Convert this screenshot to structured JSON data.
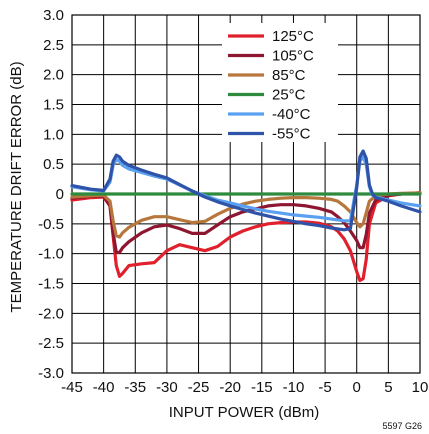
{
  "chart_data": {
    "type": "line",
    "title": "",
    "xlabel": "INPUT POWER (dBm)",
    "ylabel": "TEMPERATURE DRIFT ERROR (dB)",
    "xlim": [
      -45,
      10
    ],
    "ylim": [
      -3.0,
      3.0
    ],
    "x_ticks": [
      -45,
      -40,
      -35,
      -30,
      -25,
      -20,
      -15,
      -10,
      -5,
      0,
      5,
      10
    ],
    "x_tick_labels": [
      "-45",
      "-40",
      "-35",
      "-30",
      "-25",
      "-20",
      "-15",
      "-10",
      "-5",
      "0",
      "5",
      "10"
    ],
    "y_ticks": [
      -3.0,
      -2.5,
      -2.0,
      -1.5,
      -1.0,
      -0.5,
      0,
      0.5,
      1.0,
      1.5,
      2.0,
      2.5,
      3.0
    ],
    "y_tick_labels": [
      "-3.0",
      "-2.5",
      "-2.0",
      "-1.5",
      "-1.0",
      "-0.5",
      "0",
      "0.5",
      "1.0",
      "1.5",
      "2.0",
      "2.5",
      "3.0"
    ],
    "grid": true,
    "legend_position": "top-center",
    "figure_id": "5597 G26",
    "series": [
      {
        "name": "125°C",
        "color": "#e0202c",
        "x": [
          -45,
          -42,
          -40,
          -39,
          -38.5,
          -38,
          -37.5,
          -37,
          -36,
          -34,
          -32,
          -30,
          -28,
          -26,
          -24,
          -22,
          -20,
          -18,
          -16,
          -14,
          -12,
          -10,
          -8,
          -6,
          -4,
          -3,
          -2,
          -1,
          0,
          0.5,
          1,
          1.5,
          2,
          3,
          5,
          7,
          10
        ],
        "y": [
          -0.1,
          -0.06,
          -0.05,
          -0.2,
          -0.7,
          -1.2,
          -1.38,
          -1.33,
          -1.2,
          -1.17,
          -1.15,
          -0.95,
          -0.85,
          -0.9,
          -0.95,
          -0.88,
          -0.72,
          -0.62,
          -0.55,
          -0.5,
          -0.48,
          -0.47,
          -0.47,
          -0.49,
          -0.55,
          -0.62,
          -0.75,
          -0.95,
          -1.3,
          -1.45,
          -1.42,
          -1.1,
          -0.5,
          -0.15,
          -0.03,
          0.0,
          0.02
        ]
      },
      {
        "name": "105°C",
        "color": "#8e1630",
        "x": [
          -45,
          -42,
          -40,
          -39,
          -38.5,
          -38,
          -37.5,
          -37,
          -36,
          -34,
          -32,
          -30,
          -28,
          -26,
          -24,
          -22,
          -20,
          -18,
          -16,
          -14,
          -12,
          -10,
          -8,
          -6,
          -4,
          -3,
          -2,
          -1,
          0,
          0.5,
          1,
          1.5,
          2,
          3,
          5,
          7,
          10
        ],
        "y": [
          -0.07,
          -0.04,
          -0.03,
          -0.2,
          -0.65,
          -0.98,
          -0.98,
          -0.9,
          -0.8,
          -0.65,
          -0.55,
          -0.52,
          -0.58,
          -0.66,
          -0.66,
          -0.52,
          -0.38,
          -0.3,
          -0.25,
          -0.2,
          -0.18,
          -0.18,
          -0.2,
          -0.24,
          -0.3,
          -0.38,
          -0.48,
          -0.62,
          -0.78,
          -0.9,
          -0.9,
          -0.68,
          -0.32,
          -0.1,
          -0.02,
          0.0,
          0.02
        ]
      },
      {
        "name": "85°C",
        "color": "#b7773c",
        "x": [
          -45,
          -42,
          -40,
          -39,
          -38.5,
          -38,
          -37.5,
          -37,
          -36,
          -34,
          -32,
          -30,
          -28,
          -26,
          -24,
          -22,
          -20,
          -18,
          -16,
          -14,
          -12,
          -10,
          -8,
          -6,
          -4,
          -3,
          -2,
          -1,
          0,
          0.5,
          1,
          1.5,
          2,
          3,
          5,
          7,
          10
        ],
        "y": [
          -0.05,
          -0.03,
          -0.02,
          -0.12,
          -0.45,
          -0.7,
          -0.72,
          -0.65,
          -0.56,
          -0.44,
          -0.38,
          -0.38,
          -0.43,
          -0.48,
          -0.46,
          -0.34,
          -0.24,
          -0.17,
          -0.12,
          -0.09,
          -0.07,
          -0.06,
          -0.06,
          -0.07,
          -0.09,
          -0.12,
          -0.2,
          -0.3,
          -0.48,
          -0.55,
          -0.5,
          -0.32,
          -0.12,
          -0.03,
          0.0,
          0.01,
          0.02
        ]
      },
      {
        "name": "25°C",
        "color": "#2e8b3e",
        "x": [
          -45,
          -40,
          -35,
          -30,
          -25,
          -20,
          -15,
          -10,
          -5,
          0,
          5,
          10
        ],
        "y": [
          0,
          0,
          0,
          0,
          0,
          0,
          0,
          0,
          0,
          0,
          0,
          0
        ]
      },
      {
        "name": "-40°C",
        "color": "#5aa0f0",
        "x": [
          -45,
          -42,
          -40,
          -39,
          -38.5,
          -38,
          -37.5,
          -37,
          -36,
          -34,
          -32,
          -30,
          -28,
          -26,
          -24,
          -22,
          -20,
          -18,
          -16,
          -14,
          -12,
          -10,
          -8,
          -6,
          -4,
          -2,
          -1,
          0,
          0.5,
          1,
          1.5,
          2,
          2.5,
          3,
          5,
          7,
          10
        ],
        "y": [
          0.12,
          0.07,
          0.05,
          0.2,
          0.48,
          0.58,
          0.55,
          0.48,
          0.42,
          0.36,
          0.3,
          0.25,
          0.15,
          0.05,
          -0.03,
          -0.1,
          -0.15,
          -0.2,
          -0.25,
          -0.29,
          -0.32,
          -0.35,
          -0.37,
          -0.39,
          -0.42,
          -0.45,
          -0.45,
          0.15,
          0.55,
          0.62,
          0.5,
          0.12,
          -0.02,
          -0.05,
          -0.1,
          -0.15,
          -0.2
        ]
      },
      {
        "name": "-55°C",
        "color": "#2e53a8",
        "x": [
          -45,
          -42,
          -40,
          -39,
          -38.5,
          -38,
          -37.5,
          -37,
          -36,
          -34,
          -32,
          -30,
          -28,
          -26,
          -24,
          -22,
          -20,
          -18,
          -16,
          -14,
          -12,
          -10,
          -8,
          -6,
          -4,
          -2,
          -1,
          0,
          0.5,
          1,
          1.5,
          2,
          2.5,
          3,
          5,
          7,
          10
        ],
        "y": [
          0.14,
          0.08,
          0.06,
          0.25,
          0.55,
          0.65,
          0.62,
          0.55,
          0.48,
          0.4,
          0.33,
          0.27,
          0.16,
          0.05,
          -0.05,
          -0.13,
          -0.2,
          -0.26,
          -0.32,
          -0.37,
          -0.42,
          -0.46,
          -0.5,
          -0.53,
          -0.57,
          -0.6,
          -0.58,
          0.1,
          0.62,
          0.72,
          0.6,
          0.15,
          0.0,
          -0.06,
          -0.12,
          -0.2,
          -0.3
        ]
      }
    ]
  }
}
